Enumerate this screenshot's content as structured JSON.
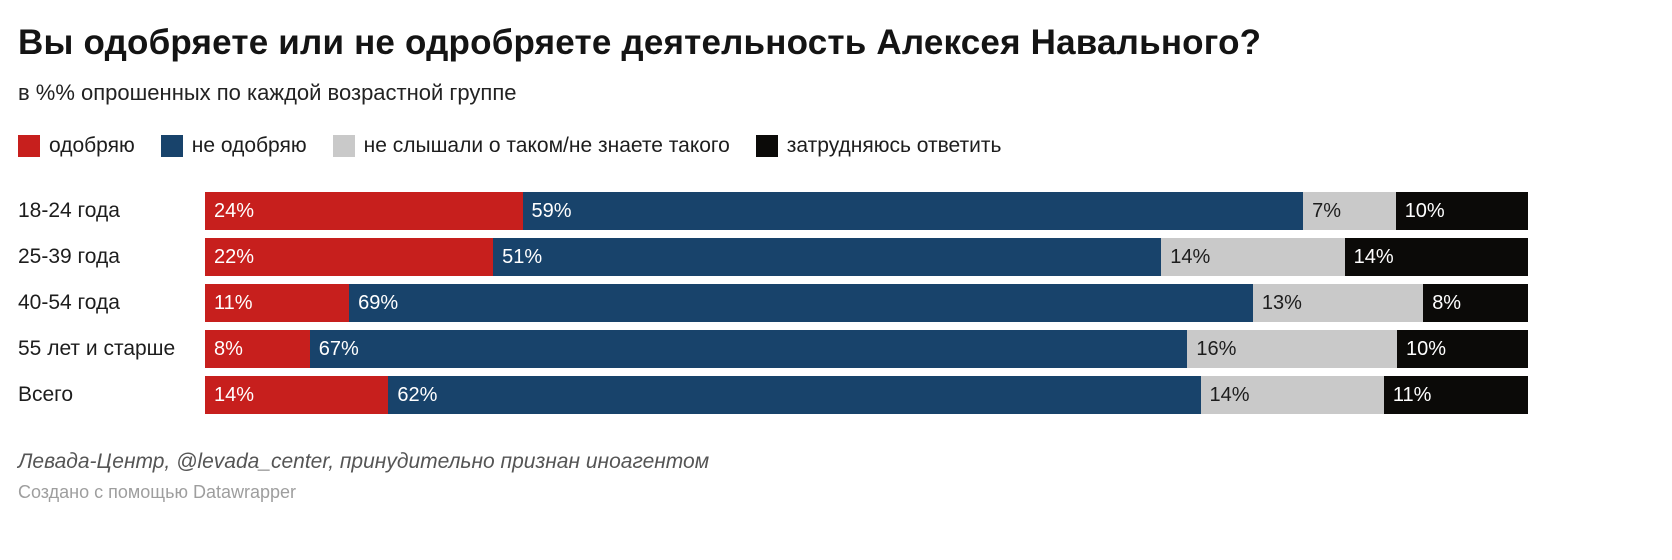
{
  "chart_data": {
    "type": "bar",
    "stacked": true,
    "orientation": "horizontal",
    "title": "Вы одобряете или не одробряете деятельность Алексея Навального?",
    "subtitle": "в %% опрошенных по каждой возрастной группе",
    "categories": [
      "18-24 года",
      "25-39 года",
      "40-54 года",
      "55 лет и старше",
      "Всего"
    ],
    "series": [
      {
        "name": "одобряю",
        "color": "#c71f1d",
        "label_color": "#ffffff",
        "values": [
          24,
          22,
          11,
          8,
          14
        ]
      },
      {
        "name": "не одобряю",
        "color": "#18436b",
        "label_color": "#ffffff",
        "values": [
          59,
          51,
          69,
          67,
          62
        ]
      },
      {
        "name": "не слышали о таком/не знаете такого",
        "color": "#c9c9c9",
        "label_color": "#1d1d1d",
        "values": [
          7,
          14,
          13,
          16,
          14
        ]
      },
      {
        "name": "затрудняюсь ответить",
        "color": "#0b0a08",
        "label_color": "#ffffff",
        "values": [
          10,
          14,
          8,
          10,
          11
        ]
      }
    ],
    "xlim": [
      0,
      100
    ],
    "value_suffix": "%",
    "legend_position": "top",
    "grid": false
  },
  "footer": {
    "source": "Левада-Центр, @levada_center, принудительно признан иноагентом",
    "credit": "Создано с помощью Datawrapper"
  }
}
